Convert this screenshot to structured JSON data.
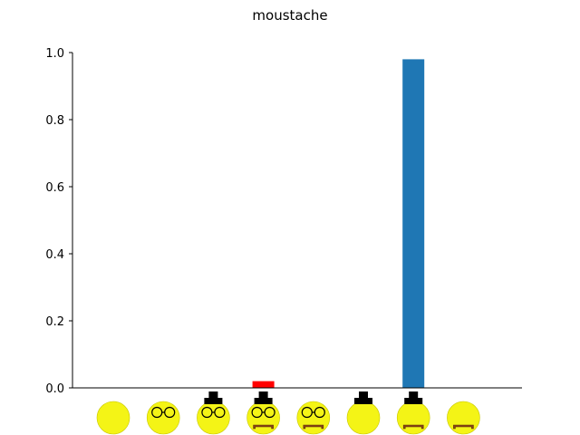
{
  "chart_data": {
    "type": "bar",
    "title": "moustache",
    "xlabel": "",
    "ylabel": "",
    "ylim": [
      0,
      1.0
    ],
    "yticks": [
      "0.0",
      "0.2",
      "0.4",
      "0.6",
      "0.8",
      "1.0"
    ],
    "categories": [
      {
        "features": [],
        "value": 0.0
      },
      {
        "features": [
          "glasses"
        ],
        "value": 0.0
      },
      {
        "features": [
          "hat",
          "glasses"
        ],
        "value": 0.0
      },
      {
        "features": [
          "hat",
          "glasses",
          "moustache"
        ],
        "value": 0.02
      },
      {
        "features": [
          "glasses",
          "moustache"
        ],
        "value": 0.0
      },
      {
        "features": [
          "hat"
        ],
        "value": 0.0
      },
      {
        "features": [
          "hat",
          "moustache"
        ],
        "value": 0.98
      },
      {
        "features": [
          "moustache"
        ],
        "value": 0.0
      }
    ],
    "highlight_index": 3,
    "colors": {
      "bar": "#1f77b4",
      "highlight": "#ff0000",
      "face": "#f4f416",
      "moustache": "#8b4513",
      "hat": "#000000"
    },
    "grid": false,
    "legend": "none"
  }
}
